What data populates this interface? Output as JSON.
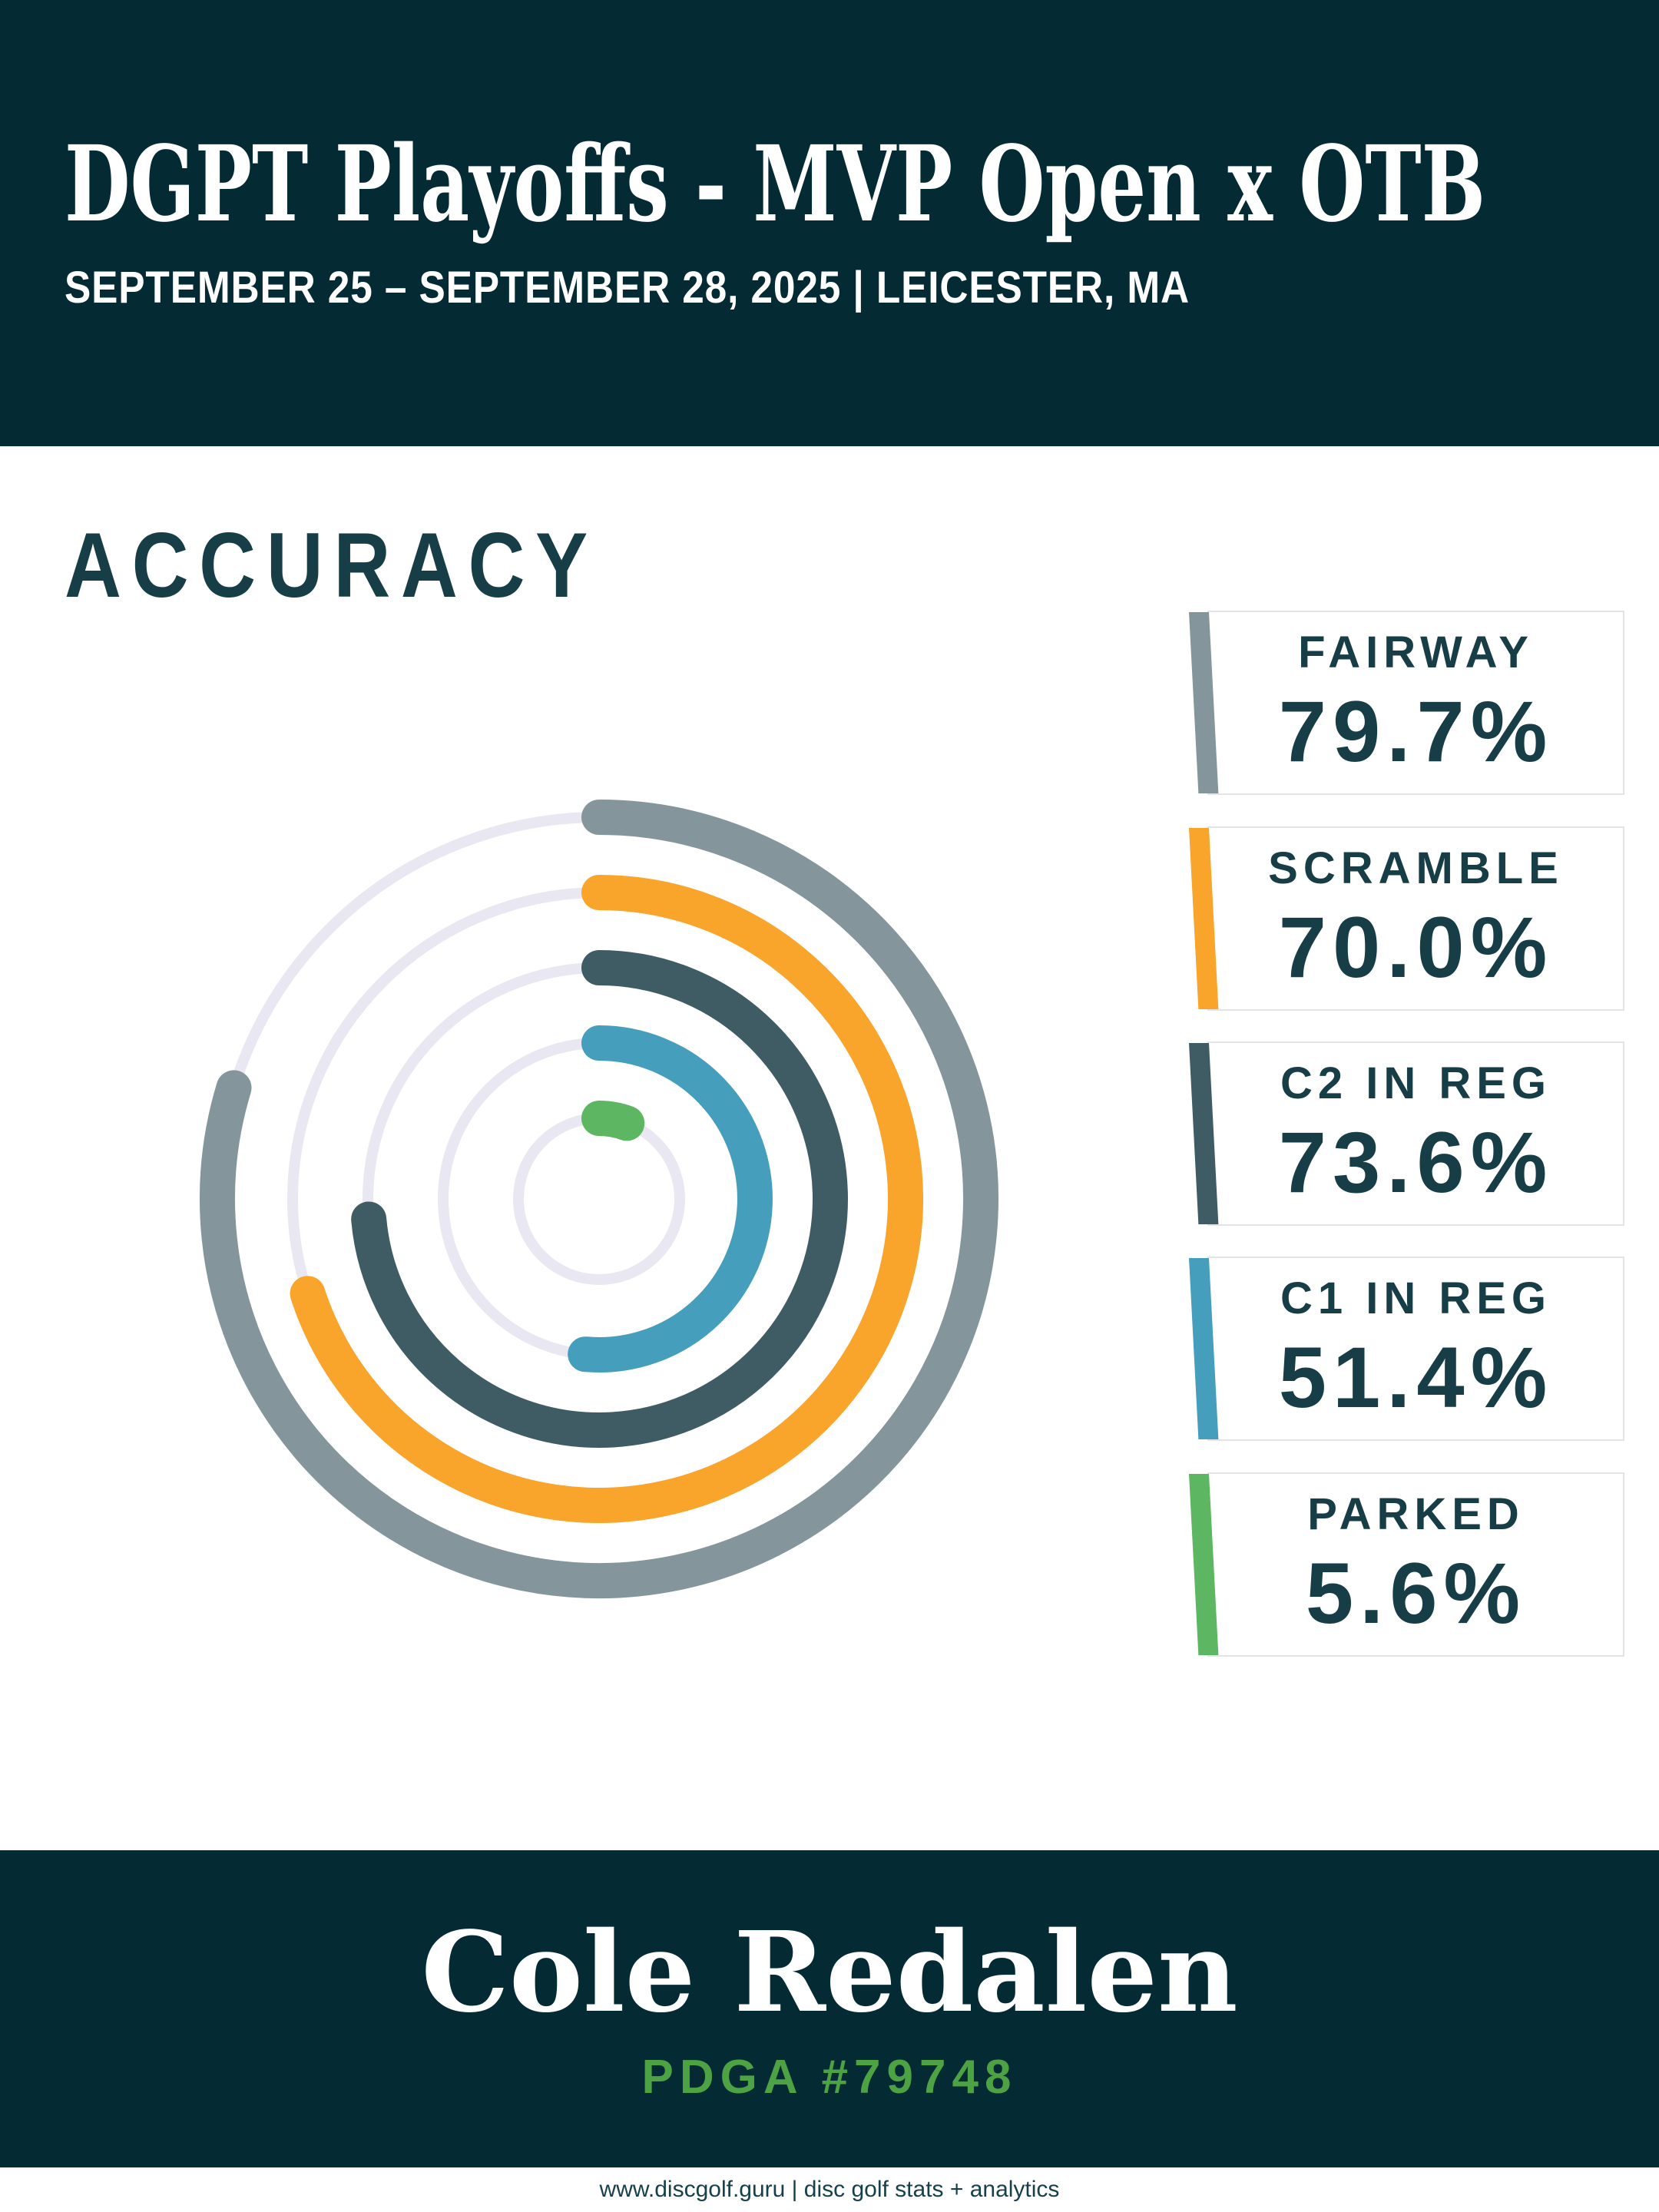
{
  "header": {
    "title": "DGPT Playoffs - MVP Open x OTB",
    "subtitle": "SEPTEMBER 25 – SEPTEMBER 28, 2025 | LEICESTER, MA"
  },
  "section_title": "ACCURACY",
  "chart_data": {
    "type": "radial_bar",
    "title": "ACCURACY",
    "direction": "clockwise",
    "start_angle_deg": 0,
    "rings_order": "outer_to_inner",
    "track_color": "#e9e8f2",
    "series": [
      {
        "label": "FAIRWAY",
        "value_pct": 79.7,
        "display": "79.7%",
        "color": "#84969b"
      },
      {
        "label": "SCRAMBLE",
        "value_pct": 70.0,
        "display": "70.0%",
        "color": "#f9a42b"
      },
      {
        "label": "C2 IN REG",
        "value_pct": 73.6,
        "display": "73.6%",
        "color": "#3f5b63"
      },
      {
        "label": "C1 IN REG",
        "value_pct": 51.4,
        "display": "51.4%",
        "color": "#459fbc"
      },
      {
        "label": "PARKED",
        "value_pct": 5.6,
        "display": "5.6%",
        "color": "#5cb662"
      }
    ]
  },
  "footer": {
    "player_name": "Cole Redalen",
    "pdga": "PDGA #79748",
    "tagline": "www.discgolf.guru | disc golf stats + analytics"
  },
  "colors": {
    "header_bg": "#042b33",
    "footer_bg": "#042b33",
    "text_dark": "#173e46",
    "pdga_green": "#4da244",
    "box_border": "#e3e3e8"
  }
}
